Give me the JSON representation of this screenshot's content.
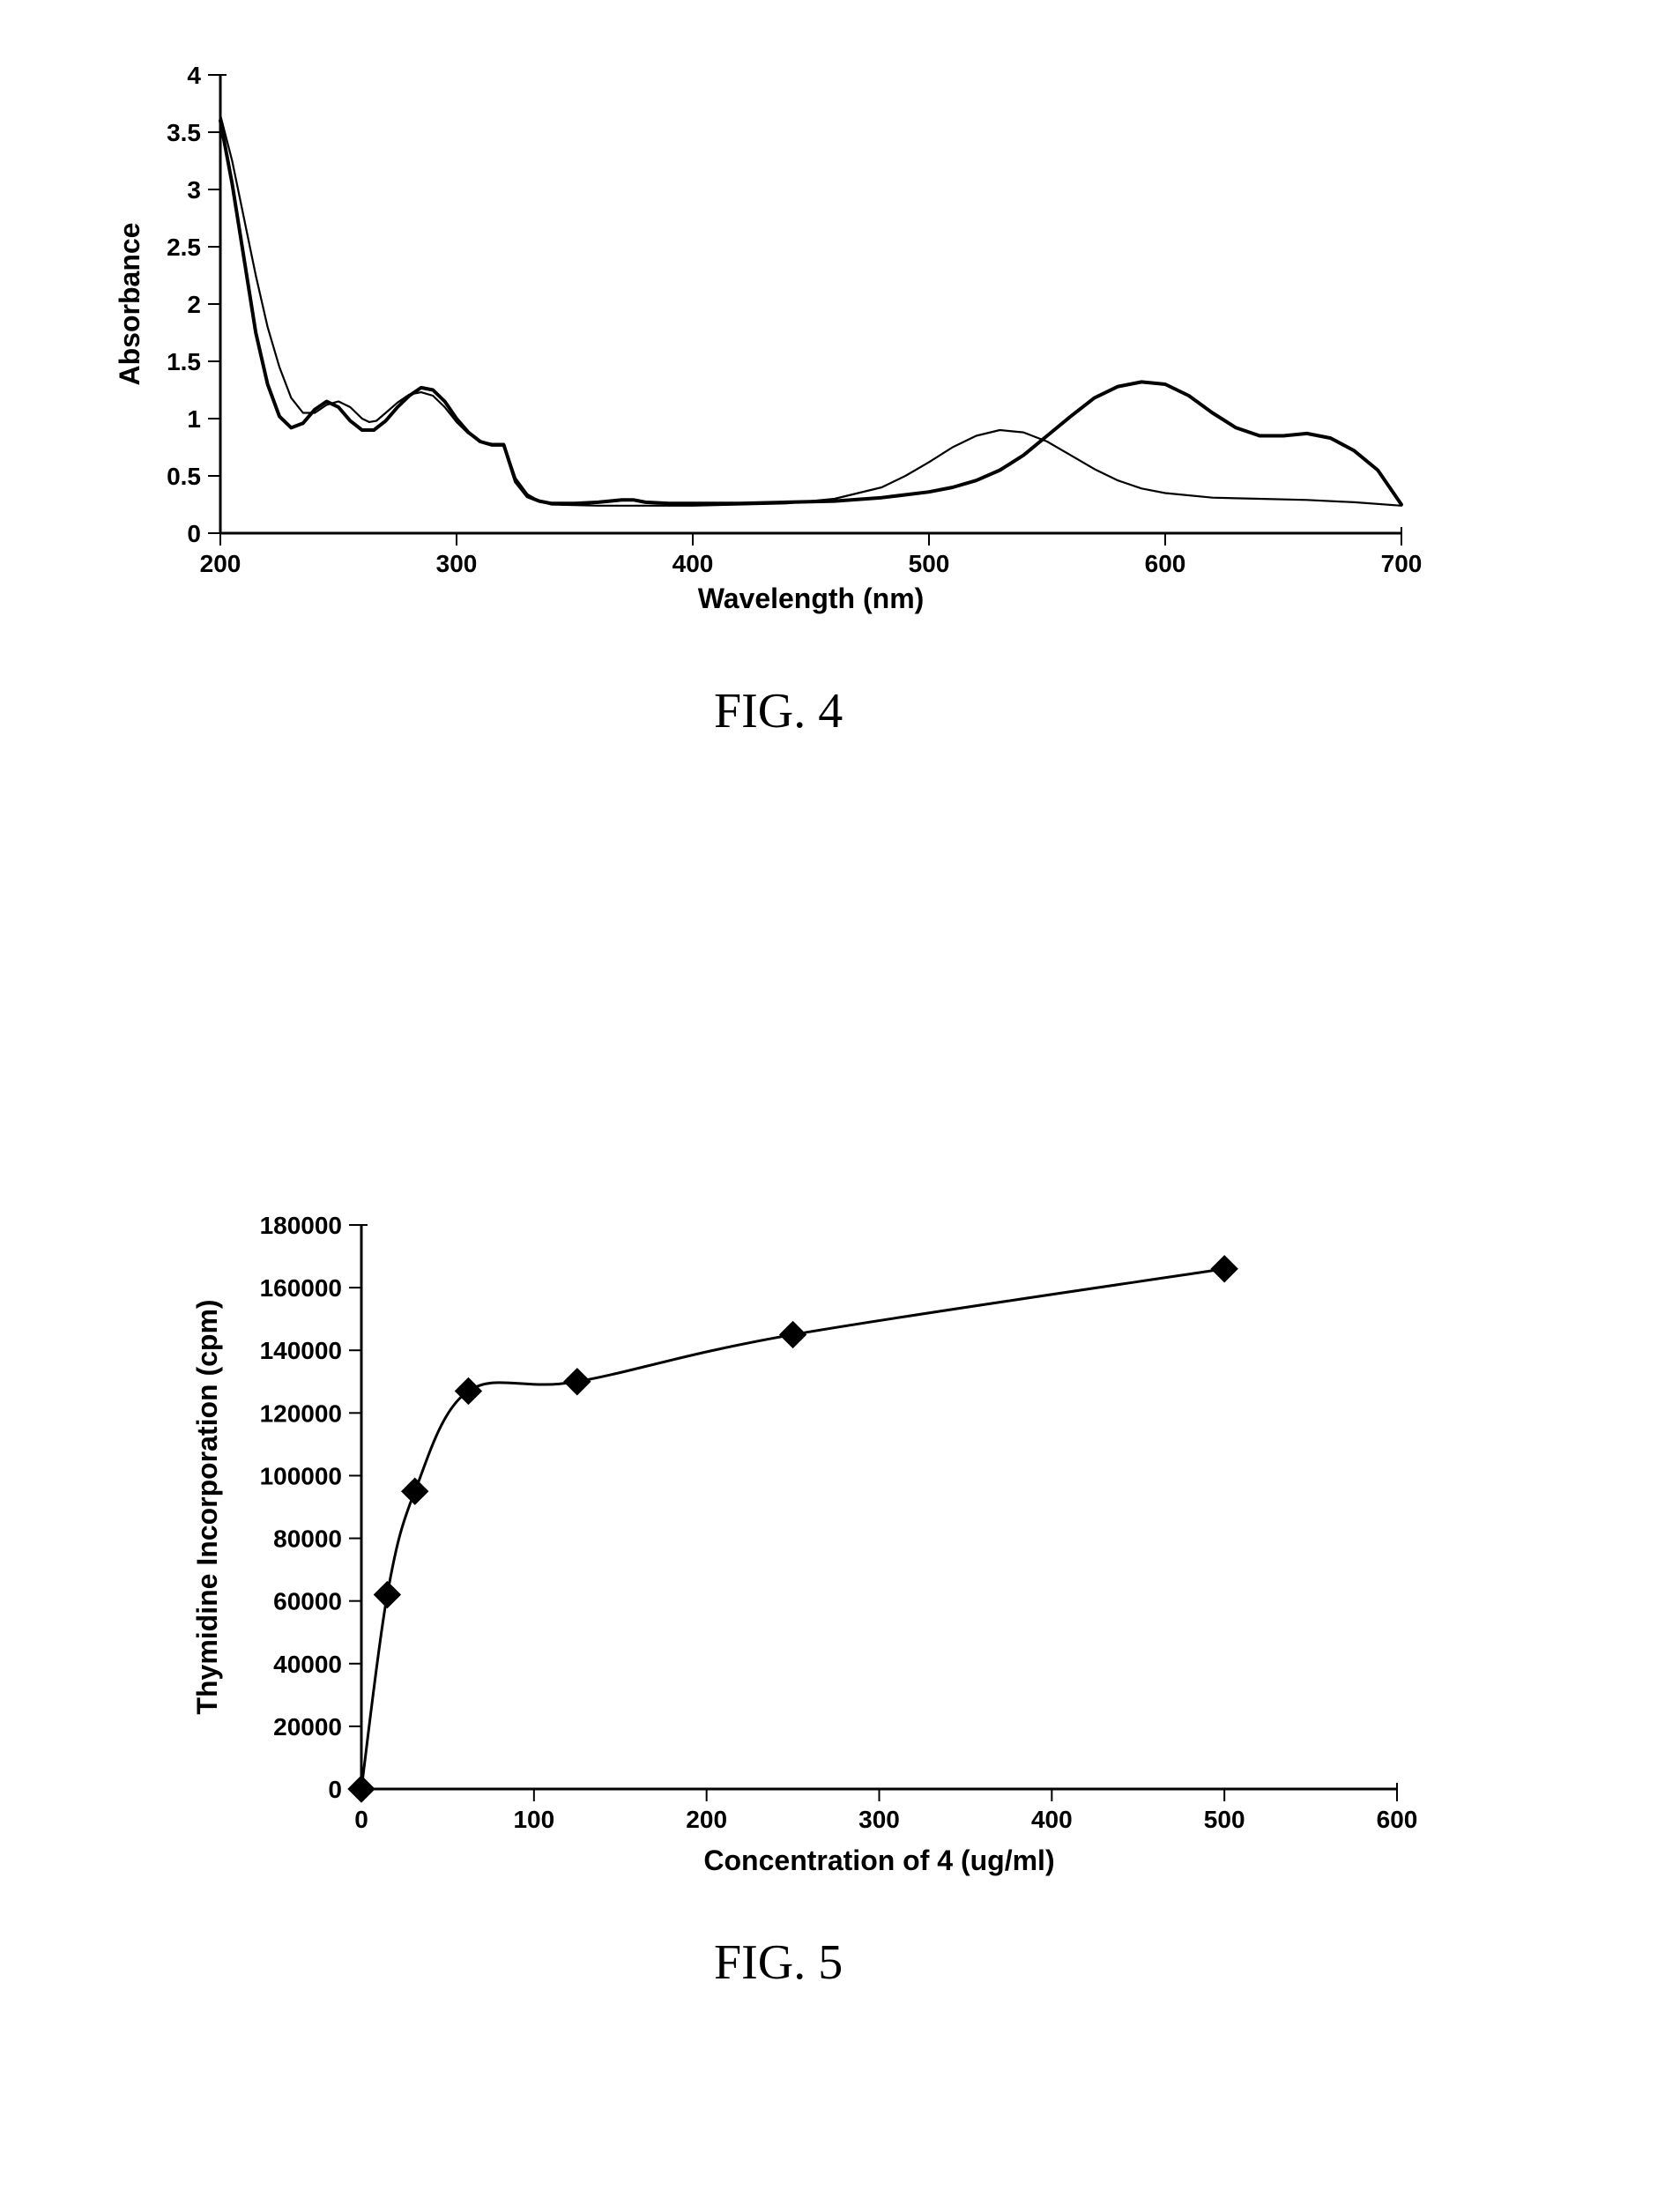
{
  "fig4": {
    "label": "FIG. 4",
    "xlabel": "Wavelength (nm)",
    "ylabel": "Absorbance",
    "xlim": [
      200,
      700
    ],
    "ylim": [
      0,
      4
    ],
    "xticks": [
      200,
      300,
      400,
      500,
      600,
      700
    ],
    "yticks": [
      0,
      0.5,
      1,
      1.5,
      2,
      2.5,
      3,
      3.5,
      4
    ],
    "axis_color": "#000000",
    "line_width_thick": 4,
    "line_width_thin": 2.2,
    "tick_fontsize": 28,
    "label_fontsize": 32,
    "series_thick": [
      [
        200,
        3.6
      ],
      [
        205,
        3.05
      ],
      [
        210,
        2.4
      ],
      [
        215,
        1.75
      ],
      [
        220,
        1.3
      ],
      [
        225,
        1.02
      ],
      [
        230,
        0.92
      ],
      [
        235,
        0.96
      ],
      [
        240,
        1.08
      ],
      [
        245,
        1.15
      ],
      [
        250,
        1.1
      ],
      [
        255,
        0.98
      ],
      [
        260,
        0.9
      ],
      [
        265,
        0.9
      ],
      [
        270,
        0.98
      ],
      [
        275,
        1.1
      ],
      [
        280,
        1.2
      ],
      [
        285,
        1.27
      ],
      [
        290,
        1.25
      ],
      [
        295,
        1.15
      ],
      [
        300,
        1.0
      ],
      [
        305,
        0.88
      ],
      [
        310,
        0.8
      ],
      [
        315,
        0.77
      ],
      [
        320,
        0.77
      ],
      [
        325,
        0.45
      ],
      [
        330,
        0.32
      ],
      [
        335,
        0.28
      ],
      [
        340,
        0.26
      ],
      [
        350,
        0.26
      ],
      [
        360,
        0.27
      ],
      [
        370,
        0.29
      ],
      [
        375,
        0.29
      ],
      [
        380,
        0.27
      ],
      [
        390,
        0.26
      ],
      [
        400,
        0.26
      ],
      [
        420,
        0.26
      ],
      [
        440,
        0.27
      ],
      [
        460,
        0.28
      ],
      [
        480,
        0.31
      ],
      [
        500,
        0.36
      ],
      [
        510,
        0.4
      ],
      [
        520,
        0.46
      ],
      [
        530,
        0.55
      ],
      [
        540,
        0.68
      ],
      [
        550,
        0.85
      ],
      [
        560,
        1.02
      ],
      [
        570,
        1.18
      ],
      [
        580,
        1.28
      ],
      [
        590,
        1.32
      ],
      [
        600,
        1.3
      ],
      [
        610,
        1.2
      ],
      [
        620,
        1.05
      ],
      [
        630,
        0.92
      ],
      [
        640,
        0.85
      ],
      [
        650,
        0.85
      ],
      [
        660,
        0.87
      ],
      [
        670,
        0.83
      ],
      [
        680,
        0.72
      ],
      [
        690,
        0.55
      ],
      [
        695,
        0.4
      ],
      [
        700,
        0.25
      ]
    ],
    "series_thin": [
      [
        200,
        3.65
      ],
      [
        205,
        3.25
      ],
      [
        210,
        2.75
      ],
      [
        215,
        2.25
      ],
      [
        220,
        1.8
      ],
      [
        225,
        1.45
      ],
      [
        230,
        1.18
      ],
      [
        235,
        1.05
      ],
      [
        240,
        1.05
      ],
      [
        245,
        1.12
      ],
      [
        250,
        1.15
      ],
      [
        255,
        1.1
      ],
      [
        260,
        1.0
      ],
      [
        263,
        0.97
      ],
      [
        266,
        0.98
      ],
      [
        270,
        1.05
      ],
      [
        275,
        1.14
      ],
      [
        280,
        1.21
      ],
      [
        285,
        1.23
      ],
      [
        290,
        1.2
      ],
      [
        295,
        1.1
      ],
      [
        300,
        0.97
      ],
      [
        305,
        0.87
      ],
      [
        310,
        0.8
      ],
      [
        315,
        0.78
      ],
      [
        320,
        0.78
      ],
      [
        325,
        0.48
      ],
      [
        330,
        0.34
      ],
      [
        335,
        0.28
      ],
      [
        340,
        0.25
      ],
      [
        360,
        0.24
      ],
      [
        380,
        0.24
      ],
      [
        400,
        0.24
      ],
      [
        420,
        0.25
      ],
      [
        440,
        0.26
      ],
      [
        460,
        0.3
      ],
      [
        480,
        0.4
      ],
      [
        490,
        0.5
      ],
      [
        500,
        0.62
      ],
      [
        510,
        0.75
      ],
      [
        520,
        0.85
      ],
      [
        530,
        0.9
      ],
      [
        540,
        0.88
      ],
      [
        550,
        0.8
      ],
      [
        560,
        0.68
      ],
      [
        570,
        0.56
      ],
      [
        580,
        0.46
      ],
      [
        590,
        0.39
      ],
      [
        600,
        0.35
      ],
      [
        620,
        0.31
      ],
      [
        640,
        0.3
      ],
      [
        660,
        0.29
      ],
      [
        680,
        0.27
      ],
      [
        700,
        0.24
      ]
    ]
  },
  "fig5": {
    "label": "FIG. 5",
    "xlabel": "Concentration of 4 (ug/ml)",
    "ylabel": "Thymidine Incorporation (cpm)",
    "xlim": [
      0,
      600
    ],
    "ylim": [
      0,
      180000
    ],
    "xticks": [
      0,
      100,
      200,
      300,
      400,
      500,
      600
    ],
    "yticks": [
      0,
      20000,
      40000,
      60000,
      80000,
      100000,
      120000,
      140000,
      160000,
      180000
    ],
    "axis_color": "#000000",
    "line_width": 3,
    "marker_size": 15,
    "marker_color": "#000000",
    "tick_fontsize": 28,
    "label_fontsize": 32,
    "series": [
      [
        0,
        0
      ],
      [
        15,
        62000
      ],
      [
        31,
        95000
      ],
      [
        62,
        127000
      ],
      [
        125,
        130000
      ],
      [
        250,
        145000
      ],
      [
        500,
        166000
      ]
    ]
  }
}
